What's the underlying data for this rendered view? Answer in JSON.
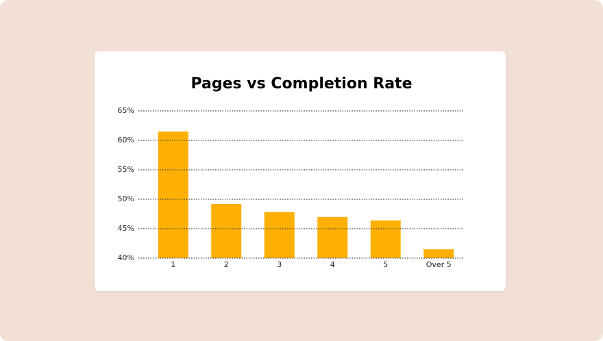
{
  "chart_data": {
    "type": "bar",
    "title": "Pages vs Completion Rate",
    "categories": [
      "1",
      "2",
      "3",
      "4",
      "5",
      "Over 5"
    ],
    "values": [
      61.5,
      49.2,
      47.8,
      47.0,
      46.4,
      41.5
    ],
    "color": "#ffb000",
    "ylim": [
      40,
      65
    ],
    "yticks": [
      {
        "value": 40,
        "label": "40%"
      },
      {
        "value": 45,
        "label": "45%"
      },
      {
        "value": 50,
        "label": "50%"
      },
      {
        "value": 55,
        "label": "55%"
      },
      {
        "value": 60,
        "label": "60%"
      },
      {
        "value": 65,
        "label": "65%"
      }
    ],
    "grid": true
  }
}
